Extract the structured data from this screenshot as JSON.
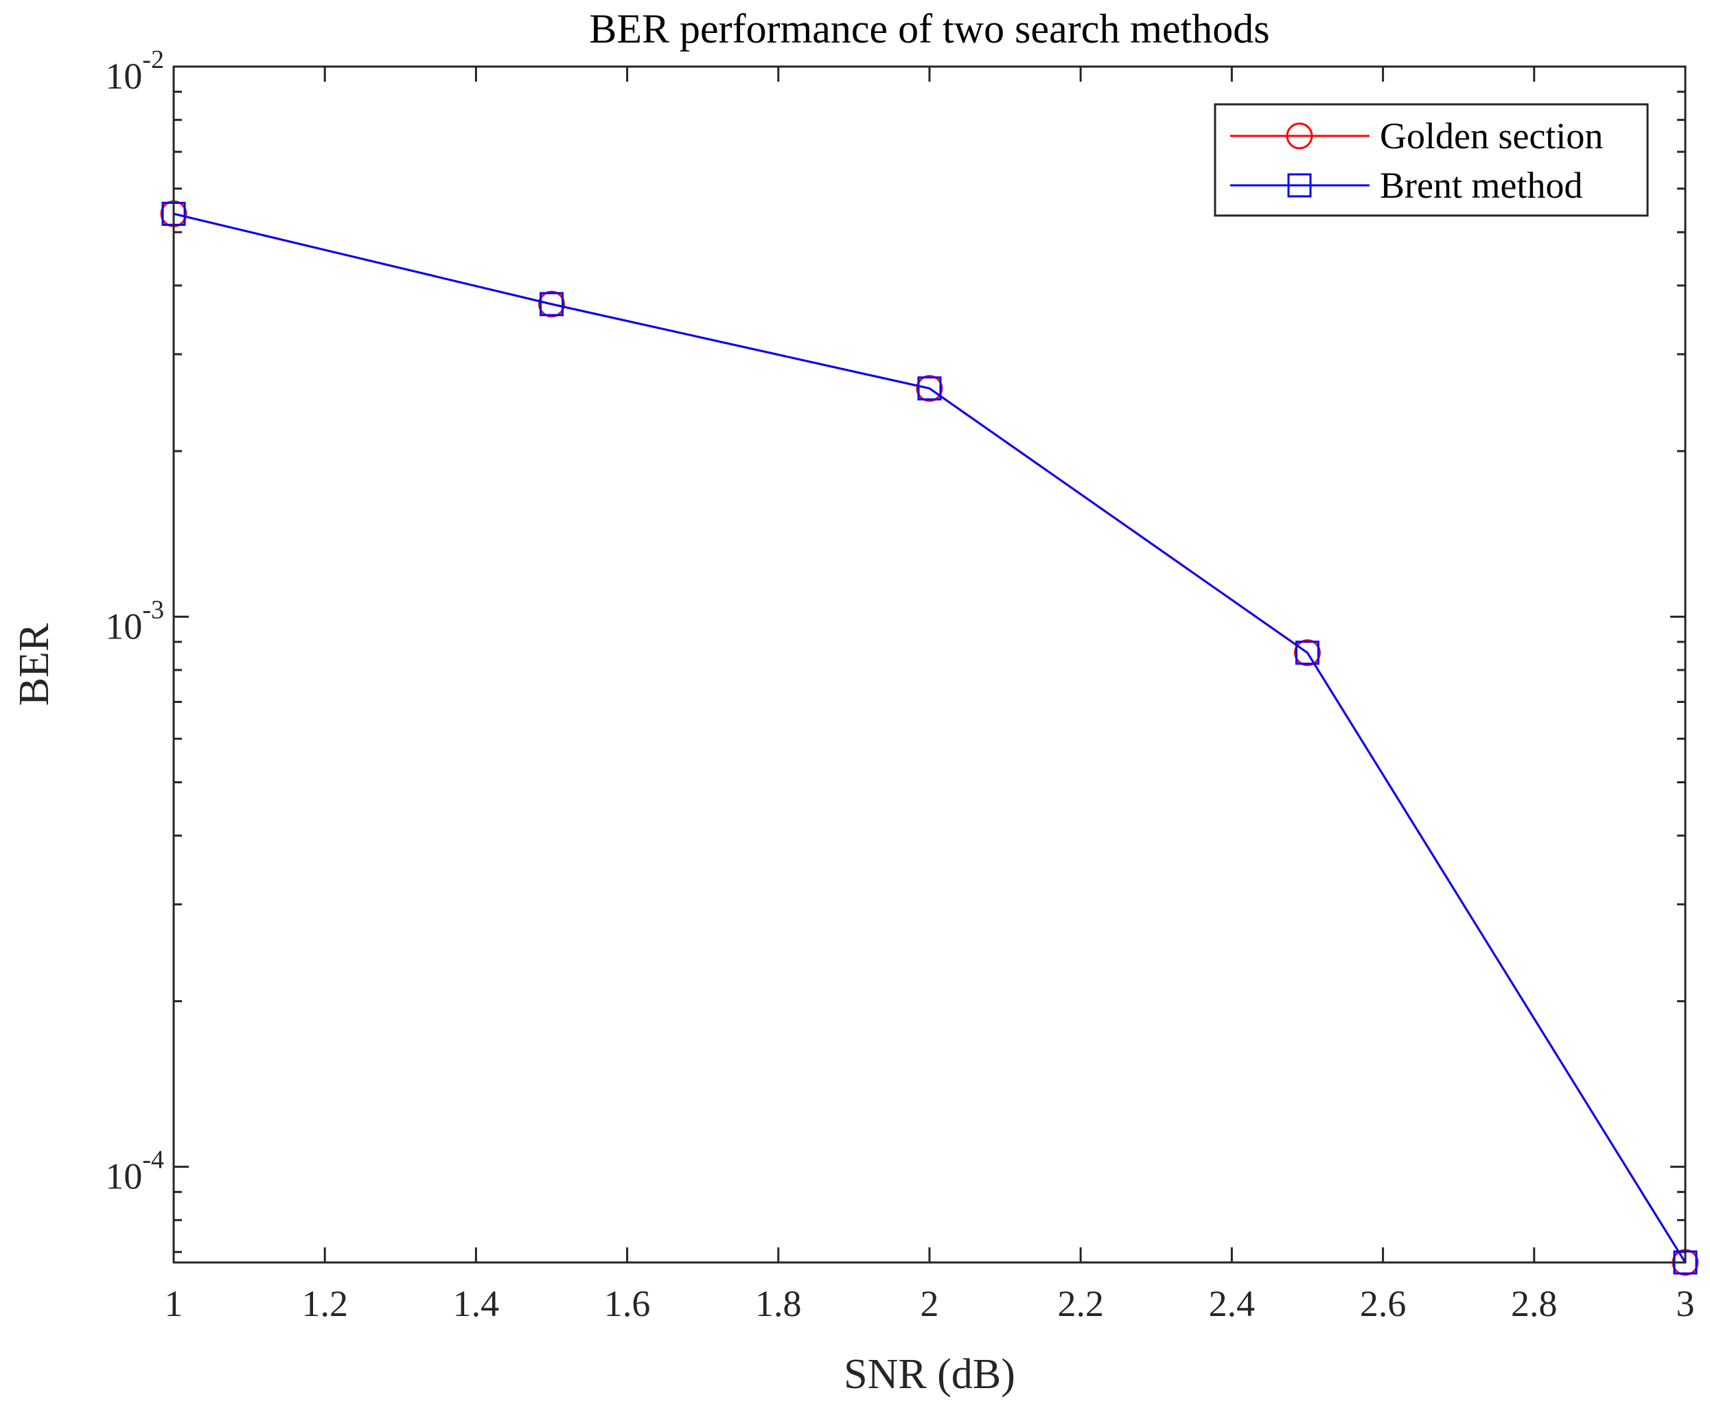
{
  "chart_data": {
    "type": "line",
    "title": "BER performance of two search methods",
    "xlabel": "SNR (dB)",
    "ylabel": "BER",
    "xlim": [
      1,
      3
    ],
    "ylim": [
      6.7e-05,
      0.01
    ],
    "yscale": "log",
    "x_ticks": [
      1,
      1.2,
      1.4,
      1.6,
      1.8,
      2,
      2.2,
      2.4,
      2.6,
      2.8,
      3
    ],
    "x_tick_labels": [
      "1",
      "1.2",
      "1.4",
      "1.6",
      "1.8",
      "2",
      "2.2",
      "2.4",
      "2.6",
      "2.8",
      "3"
    ],
    "y_major_ticks": [
      {
        "value": 0.0001,
        "base": "10",
        "exp": "-4"
      },
      {
        "value": 0.001,
        "base": "10",
        "exp": "-3"
      },
      {
        "value": 0.01,
        "base": "10",
        "exp": "-2"
      }
    ],
    "grid": false,
    "legend_position": "top-right",
    "x": [
      1,
      1.5,
      2,
      2.5,
      3
    ],
    "series": [
      {
        "name": "Golden section",
        "color": "#ff0000",
        "marker": "circle",
        "values": [
          0.0054,
          0.0037,
          0.0026,
          0.00086,
          6.7e-05
        ]
      },
      {
        "name": "Brent method",
        "color": "#0000ff",
        "marker": "square",
        "values": [
          0.0054,
          0.0037,
          0.0026,
          0.00086,
          6.7e-05
        ]
      }
    ]
  }
}
